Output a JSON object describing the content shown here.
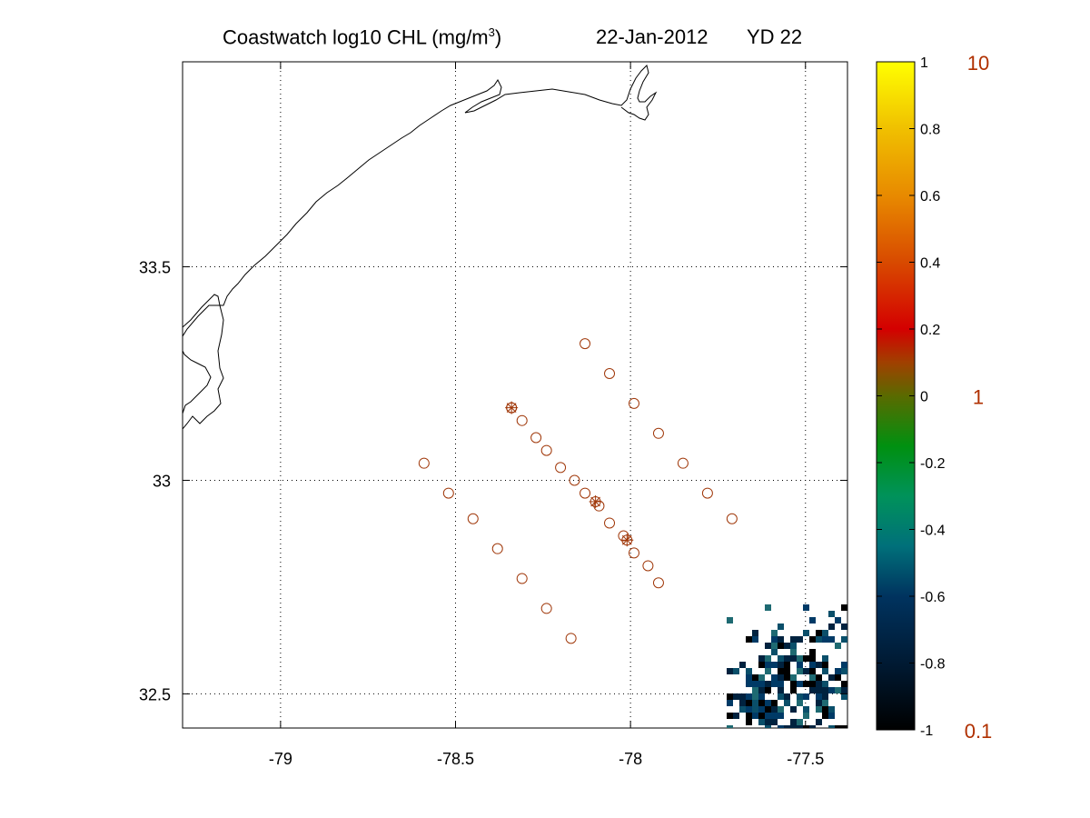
{
  "title": {
    "part1": "Coastwatch  log10  CHL (mg/m",
    "superscript": "3",
    "part2": ")",
    "date": "22-Jan-2012",
    "yearday": "YD 22"
  },
  "map": {
    "lon_range": [
      -79.28,
      -77.38
    ],
    "lat_range": [
      32.42,
      33.98
    ],
    "lon_ticks": [
      -79,
      -78.5,
      -78,
      -77.5
    ],
    "lon_tick_labels": [
      "-79",
      "-78.5",
      "-78",
      "-77.5"
    ],
    "lat_ticks": [
      32.5,
      33,
      33.5
    ],
    "lat_tick_labels": [
      "32.5",
      "33",
      "33.5"
    ],
    "grid": true,
    "coastline_color": "#000000",
    "station_color": "#a0380a"
  },
  "stations": {
    "circles": [
      [
        -78.13,
        33.32
      ],
      [
        -78.06,
        33.25
      ],
      [
        -77.99,
        33.18
      ],
      [
        -77.92,
        33.11
      ],
      [
        -77.85,
        33.04
      ],
      [
        -77.78,
        32.97
      ],
      [
        -77.71,
        32.91
      ],
      [
        -78.34,
        33.17
      ],
      [
        -78.31,
        33.14
      ],
      [
        -78.27,
        33.1
      ],
      [
        -78.24,
        33.07
      ],
      [
        -78.2,
        33.03
      ],
      [
        -78.16,
        33.0
      ],
      [
        -78.13,
        32.97
      ],
      [
        -78.09,
        32.94
      ],
      [
        -78.06,
        32.9
      ],
      [
        -78.02,
        32.87
      ],
      [
        -77.99,
        32.83
      ],
      [
        -77.95,
        32.8
      ],
      [
        -77.92,
        32.76
      ],
      [
        -78.59,
        33.04
      ],
      [
        -78.52,
        32.97
      ],
      [
        -78.45,
        32.91
      ],
      [
        -78.38,
        32.84
      ],
      [
        -78.31,
        32.77
      ],
      [
        -78.24,
        32.7
      ],
      [
        -78.17,
        32.63
      ]
    ],
    "starred": [
      [
        -78.34,
        33.17
      ],
      [
        -78.1,
        32.95
      ],
      [
        -78.01,
        32.86
      ]
    ]
  },
  "colorbar": {
    "range": [
      -1,
      1
    ],
    "ticks": [
      1,
      0.8,
      0.6,
      0.4,
      0.2,
      0,
      -0.2,
      -0.4,
      -0.6,
      -0.8,
      -1
    ],
    "tick_labels": [
      "1",
      "0.8",
      "0.6",
      "0.4",
      "0.2",
      "0",
      "-0.2",
      "-0.4",
      "-0.6",
      "-0.8",
      "-1"
    ],
    "colors": [
      [
        -1.0,
        "#000000"
      ],
      [
        -0.8,
        "#001a33"
      ],
      [
        -0.6,
        "#00335f"
      ],
      [
        -0.45,
        "#00707a"
      ],
      [
        -0.3,
        "#00925a"
      ],
      [
        -0.15,
        "#009010"
      ],
      [
        0.0,
        "#5a6a00"
      ],
      [
        0.1,
        "#a04000"
      ],
      [
        0.2,
        "#d40000"
      ],
      [
        0.4,
        "#d84a00"
      ],
      [
        0.6,
        "#e88a00"
      ],
      [
        0.8,
        "#f0c000"
      ],
      [
        1.0,
        "#ffff00"
      ]
    ],
    "concentration_labels": [
      {
        "value": 1,
        "label": "10"
      },
      {
        "value": 0,
        "label": "1"
      },
      {
        "value": -1,
        "label": "0.1"
      }
    ],
    "concentration_color": "#b03000"
  },
  "chl_pixel_colors": [
    "#000000",
    "#00223f",
    "#003a66",
    "#0a4f6a",
    "#1e6a72"
  ]
}
